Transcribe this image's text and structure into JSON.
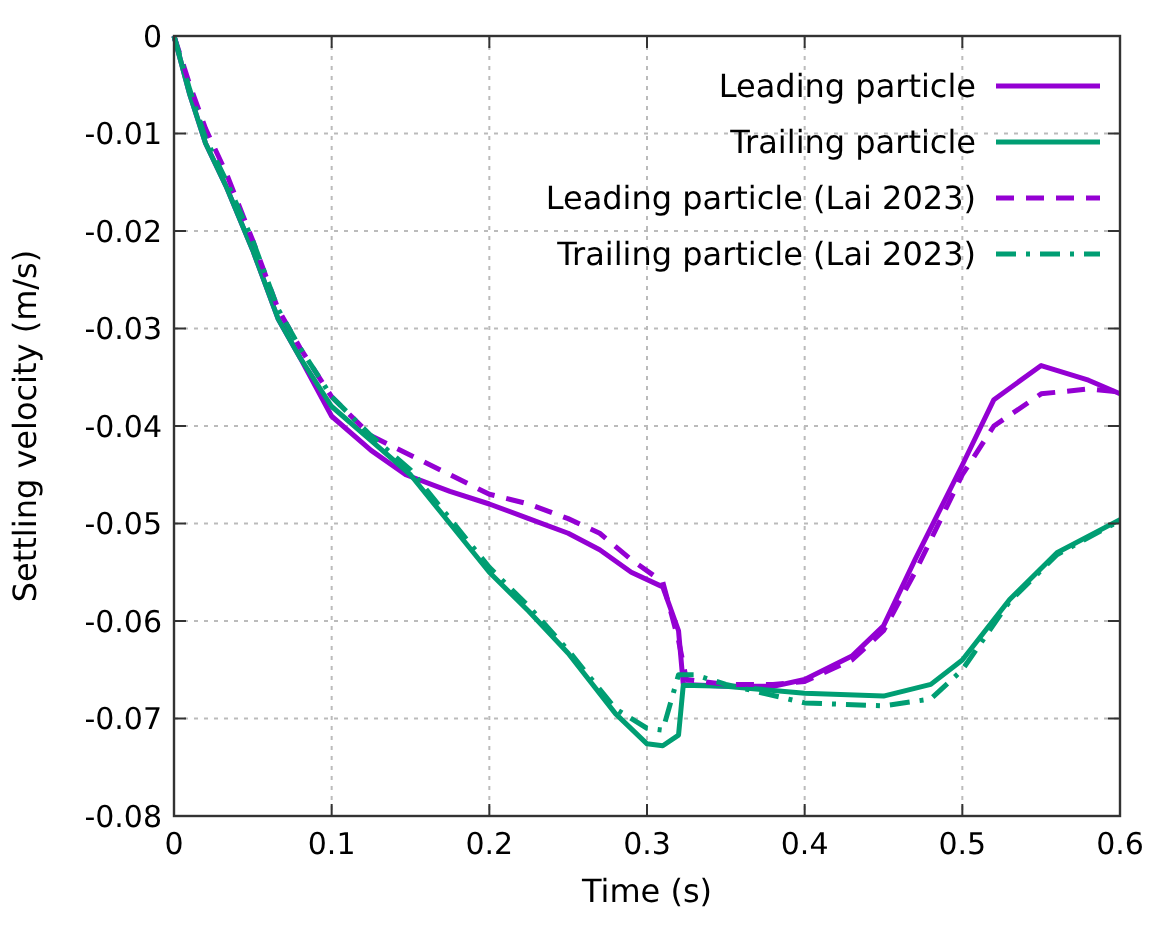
{
  "chart_data": {
    "type": "line",
    "xlabel": "Time (s)",
    "ylabel": "Settling velocity (m/s)",
    "xlim": [
      0,
      0.6
    ],
    "ylim": [
      -0.08,
      0
    ],
    "xticks": [
      0,
      0.1,
      0.2,
      0.3,
      0.4,
      0.5,
      0.6
    ],
    "yticks": [
      -0.08,
      -0.07,
      -0.06,
      -0.05,
      -0.04,
      -0.03,
      -0.02,
      -0.01,
      0
    ],
    "grid": true,
    "legend": "top right",
    "series": [
      {
        "name": "Leading particle",
        "color": "#9400d3",
        "line_style": "solid",
        "x": [
          0,
          0.01,
          0.02,
          0.033,
          0.05,
          0.066,
          0.08,
          0.1,
          0.125,
          0.147,
          0.175,
          0.2,
          0.225,
          0.25,
          0.27,
          0.29,
          0.31,
          0.32,
          0.323,
          0.35,
          0.38,
          0.4,
          0.43,
          0.45,
          0.47,
          0.5,
          0.52,
          0.55,
          0.58,
          0.6
        ],
        "values": [
          0,
          -0.006,
          -0.011,
          -0.0154,
          -0.022,
          -0.029,
          -0.033,
          -0.039,
          -0.0425,
          -0.045,
          -0.0467,
          -0.048,
          -0.0495,
          -0.051,
          -0.0527,
          -0.055,
          -0.0565,
          -0.061,
          -0.0665,
          -0.0667,
          -0.0667,
          -0.066,
          -0.0636,
          -0.0605,
          -0.0537,
          -0.044,
          -0.0373,
          -0.0338,
          -0.0353,
          -0.0367
        ]
      },
      {
        "name": "Trailing particle",
        "color": "#009e73",
        "line_style": "solid",
        "x": [
          0,
          0.01,
          0.02,
          0.033,
          0.05,
          0.066,
          0.08,
          0.1,
          0.125,
          0.15,
          0.175,
          0.2,
          0.225,
          0.25,
          0.28,
          0.3,
          0.31,
          0.32,
          0.323,
          0.35,
          0.4,
          0.45,
          0.48,
          0.5,
          0.53,
          0.56,
          0.6
        ],
        "values": [
          0,
          -0.006,
          -0.011,
          -0.0154,
          -0.022,
          -0.029,
          -0.033,
          -0.038,
          -0.0415,
          -0.045,
          -0.05,
          -0.055,
          -0.059,
          -0.0633,
          -0.0695,
          -0.0726,
          -0.0728,
          -0.0717,
          -0.0666,
          -0.0667,
          -0.0674,
          -0.0677,
          -0.0665,
          -0.064,
          -0.0578,
          -0.053,
          -0.0496
        ]
      },
      {
        "name": "Leading particle (Lai 2023)",
        "color": "#9400d3",
        "line_style": "dashed",
        "x": [
          0,
          0.01,
          0.02,
          0.033,
          0.05,
          0.066,
          0.08,
          0.1,
          0.125,
          0.15,
          0.175,
          0.2,
          0.225,
          0.25,
          0.27,
          0.29,
          0.31,
          0.32,
          0.325,
          0.35,
          0.38,
          0.4,
          0.43,
          0.45,
          0.47,
          0.5,
          0.52,
          0.55,
          0.58,
          0.6
        ],
        "values": [
          0,
          -0.005,
          -0.0095,
          -0.014,
          -0.021,
          -0.028,
          -0.032,
          -0.037,
          -0.041,
          -0.043,
          -0.045,
          -0.047,
          -0.048,
          -0.0495,
          -0.051,
          -0.0537,
          -0.056,
          -0.062,
          -0.066,
          -0.0665,
          -0.0665,
          -0.0662,
          -0.064,
          -0.061,
          -0.055,
          -0.045,
          -0.04,
          -0.0367,
          -0.0362,
          -0.0365
        ]
      },
      {
        "name": "Trailing particle (Lai 2023)",
        "color": "#009e73",
        "line_style": "dashdot",
        "x": [
          0,
          0.01,
          0.02,
          0.033,
          0.05,
          0.066,
          0.08,
          0.1,
          0.125,
          0.15,
          0.175,
          0.2,
          0.225,
          0.25,
          0.28,
          0.3,
          0.31,
          0.32,
          0.33,
          0.35,
          0.4,
          0.45,
          0.48,
          0.5,
          0.53,
          0.56,
          0.6
        ],
        "values": [
          0,
          -0.0055,
          -0.0105,
          -0.0148,
          -0.021,
          -0.028,
          -0.032,
          -0.037,
          -0.041,
          -0.0445,
          -0.0495,
          -0.0545,
          -0.0585,
          -0.063,
          -0.069,
          -0.071,
          -0.0712,
          -0.0655,
          -0.0655,
          -0.0665,
          -0.0684,
          -0.0687,
          -0.068,
          -0.065,
          -0.058,
          -0.0532,
          -0.0497
        ]
      }
    ]
  }
}
